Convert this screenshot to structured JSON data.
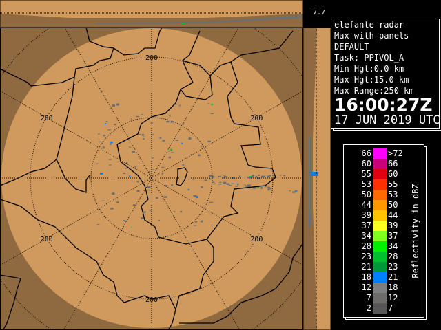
{
  "radar": {
    "elevation_label": "7.7",
    "range_ring_label": "200",
    "colors": {
      "coverage": "#d09a5e",
      "background": "#8f6940",
      "border_lines": "#000000"
    }
  },
  "info": {
    "lines": [
      "elefante-radar",
      "Max with panels",
      "DEFAULT",
      "Task: PPIVOL_A",
      "Min Hgt:0.0 km",
      "Max Hgt:15.0 km",
      "Max Range:250 km"
    ],
    "time": "16:00:27Z",
    "date": "17 JUN 2019 UTC"
  },
  "legend": {
    "title": "Reflectivity in dBZ",
    "bins": [
      {
        "lo": "66",
        "hi": ">72",
        "color": "#ff00ff"
      },
      {
        "lo": "60",
        "hi": "66",
        "color": "#c8007a"
      },
      {
        "lo": "55",
        "hi": "60",
        "color": "#e00010"
      },
      {
        "lo": "53",
        "hi": "55",
        "color": "#ff3000"
      },
      {
        "lo": "50",
        "hi": "53",
        "color": "#ff6a00"
      },
      {
        "lo": "44",
        "hi": "50",
        "color": "#ff9800"
      },
      {
        "lo": "39",
        "hi": "44",
        "color": "#ffc400"
      },
      {
        "lo": "37",
        "hi": "39",
        "color": "#ffff20"
      },
      {
        "lo": "34",
        "hi": "37",
        "color": "#80ff20"
      },
      {
        "lo": "28",
        "hi": "34",
        "color": "#00f000"
      },
      {
        "lo": "23",
        "hi": "28",
        "color": "#00c030"
      },
      {
        "lo": "21",
        "hi": "23",
        "color": "#009838"
      },
      {
        "lo": "18",
        "hi": "21",
        "color": "#0080ff"
      },
      {
        "lo": "12",
        "hi": "18",
        "color": "#7c8080"
      },
      {
        "lo": "7",
        "hi": "12",
        "color": "#6e6c68"
      },
      {
        "lo": "2",
        "hi": "7",
        "color": "#585858"
      }
    ]
  }
}
